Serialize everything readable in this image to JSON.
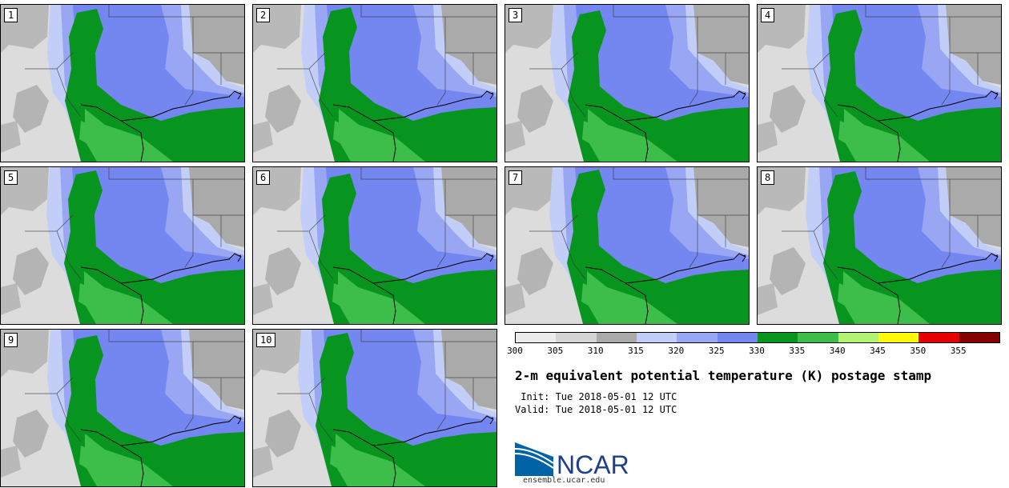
{
  "stamps": [
    {
      "label": "1"
    },
    {
      "label": "2"
    },
    {
      "label": "3"
    },
    {
      "label": "4"
    },
    {
      "label": "5"
    },
    {
      "label": "6"
    },
    {
      "label": "7"
    },
    {
      "label": "8"
    },
    {
      "label": "9"
    },
    {
      "label": "10"
    }
  ],
  "colorbar": {
    "ticks": [
      "300",
      "305",
      "310",
      "315",
      "320",
      "325",
      "330",
      "335",
      "340",
      "345",
      "350",
      "355"
    ],
    "colors": [
      "#ebebeb",
      "#d4d4d4",
      "#aaaaaa",
      "#c2cef8",
      "#98a6f3",
      "#7486ef",
      "#07951f",
      "#3dbd49",
      "#b4f371",
      "#fdf90a",
      "#e60000",
      "#850000"
    ]
  },
  "title": "2-m equivalent potential temperature (K) postage stamp",
  "init_line": " Init: Tue 2018-05-01 12 UTC",
  "valid_line": "Valid: Tue 2018-05-01 12 UTC",
  "logo": {
    "text": "NCAR",
    "url": "ensemble.ucar.edu",
    "colors": {
      "blue": "#0063a6",
      "text": "#1e3f8a"
    }
  },
  "map_colors": {
    "land_light": "#dcdcdc",
    "land_gray": "#aaaaaa",
    "theta_e_320": "#c2cef8",
    "theta_e_325": "#98a6f3",
    "theta_e_330": "#7486ef",
    "theta_e_335": "#07951f",
    "theta_e_340": "#3dbd49"
  }
}
